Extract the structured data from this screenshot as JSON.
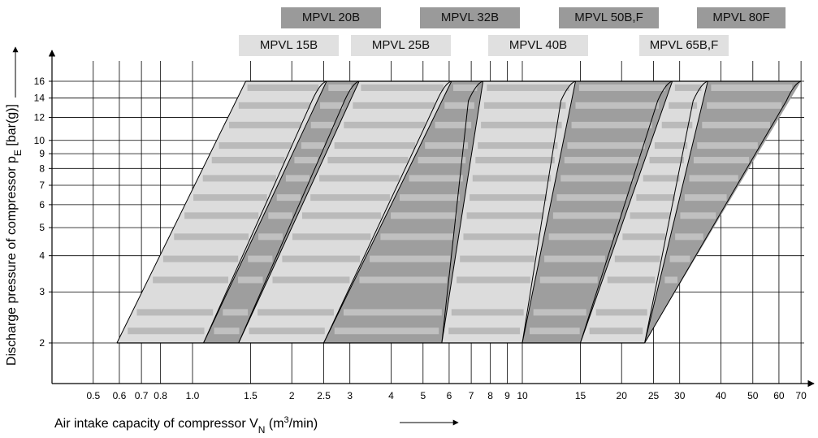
{
  "chart_data": {
    "type": "area",
    "xlabel": "Air intake capacity of compressor V",
    "xlabel_sub": "N",
    "xlabel_unit_pre": " (m",
    "xlabel_unit_sup": "3",
    "xlabel_unit_post": "/min)",
    "ylabel": "Discharge pressure of compressor p",
    "ylabel_sub": "E",
    "ylabel_unit": " [bar(g)]",
    "x_scale": "log",
    "y_scale": "log",
    "xlim": [
      0.4,
      75
    ],
    "ylim": [
      1.5,
      17
    ],
    "x_ticks": [
      "0.5",
      "0.6",
      "0.7",
      "0.8",
      "1.0",
      "1.5",
      "2",
      "2.5",
      "3",
      "4",
      "5",
      "6",
      "7",
      "8",
      "9",
      "10",
      "15",
      "20",
      "25",
      "30",
      "40",
      "50",
      "60",
      "70"
    ],
    "y_ticks": [
      "2",
      "3",
      "4",
      "5",
      "6",
      "7",
      "8",
      "9",
      "10",
      "12",
      "14",
      "16"
    ],
    "grid": true,
    "legend": "top",
    "colors": {
      "light": "#dcdcdc",
      "dark": "#9e9e9e",
      "line": "#000000",
      "legend_light": "#e0e0e0",
      "legend_dark": "#9a9a9a"
    },
    "series": [
      {
        "name": "MPVL 15B",
        "shade": "light",
        "x_at_2bar": [
          0.59,
          1.08
        ],
        "x_at_16bar": [
          1.45,
          2.55
        ]
      },
      {
        "name": "MPVL 20B",
        "shade": "dark",
        "x_at_2bar": [
          1.08,
          1.38
        ],
        "x_at_16bar": [
          2.55,
          3.2
        ]
      },
      {
        "name": "MPVL 25B",
        "shade": "light",
        "x_at_2bar": [
          1.38,
          2.5
        ],
        "x_at_16bar": [
          3.2,
          6.1
        ]
      },
      {
        "name": "MPVL 32B",
        "shade": "dark",
        "x_at_2bar": [
          2.5,
          5.7
        ],
        "x_at_16bar": [
          6.1,
          7.6
        ]
      },
      {
        "name": "MPVL 40B",
        "shade": "light",
        "x_at_2bar": [
          5.7,
          10.0
        ],
        "x_at_16bar": [
          7.6,
          14.5
        ]
      },
      {
        "name": "MPVL 50B,F",
        "shade": "dark",
        "x_at_2bar": [
          10.0,
          15.0
        ],
        "x_at_16bar": [
          14.5,
          28.5
        ]
      },
      {
        "name": "MPVL 65B,F",
        "shade": "light",
        "x_at_2bar": [
          15.0,
          23.5
        ],
        "x_at_16bar": [
          28.5,
          36.5
        ]
      },
      {
        "name": "MPVL 80F",
        "shade": "dark",
        "x_at_2bar": [
          23.5,
          23.5
        ],
        "x_at_16bar": [
          36.5,
          70.0
        ]
      }
    ]
  }
}
